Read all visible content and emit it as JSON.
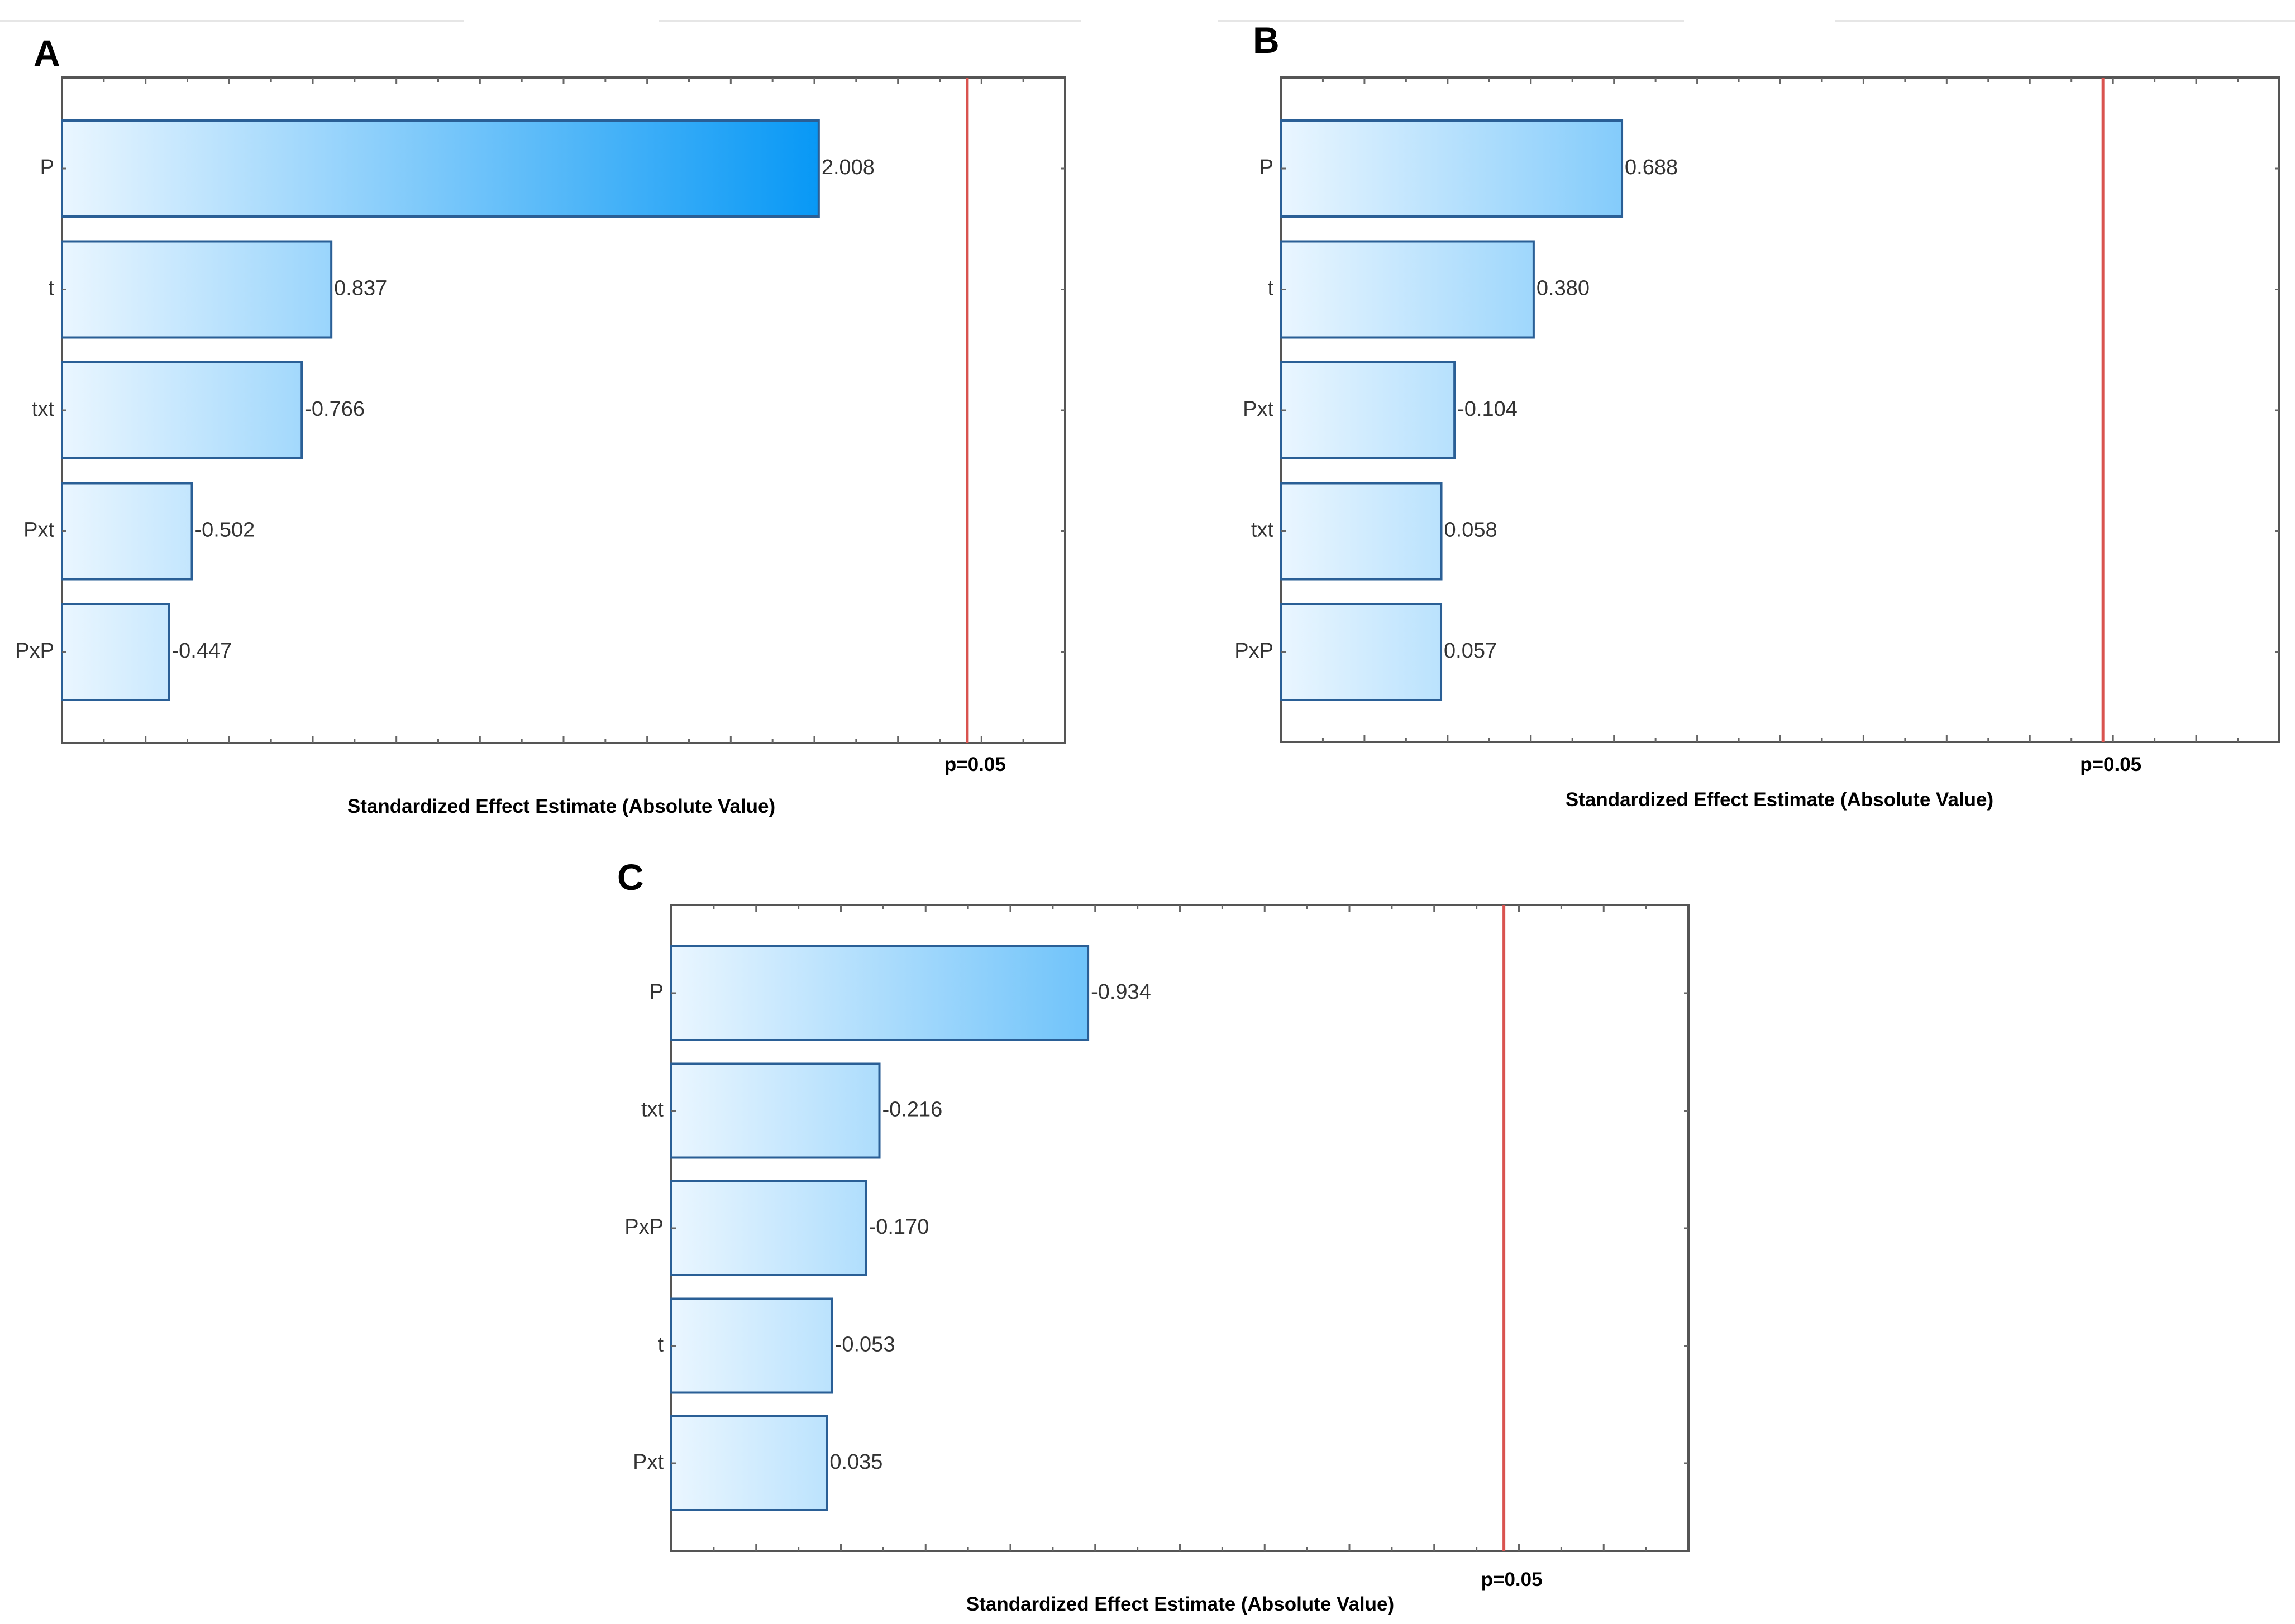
{
  "chart_data": [
    {
      "type": "bar",
      "orientation": "horizontal",
      "panel": "A",
      "categories": [
        "P",
        "t",
        "txt",
        "Pxt",
        "PxP"
      ],
      "values": [
        2.008,
        0.837,
        -0.766,
        -0.502,
        -0.447
      ],
      "value_labels": [
        "2.008",
        "0.837",
        "-0.766",
        "-0.502",
        "-0.447"
      ],
      "xlabel": "Standardized Effect Estimate (Absolute Value)",
      "reference_line": {
        "label": "p=0.05",
        "color": "#d9534f"
      },
      "xlim": [
        0.19,
        2.6
      ],
      "grid": false
    },
    {
      "type": "bar",
      "orientation": "horizontal",
      "panel": "B",
      "categories": [
        "P",
        "t",
        "Pxt",
        "txt",
        "PxP"
      ],
      "values": [
        0.688,
        0.38,
        -0.104,
        0.058,
        0.057
      ],
      "value_labels": [
        "0.688",
        "0.380",
        "-0.104",
        "0.058",
        "0.057"
      ],
      "xlabel": "Standardized Effect Estimate (Absolute Value)",
      "reference_line": {
        "label": "p=0.05",
        "color": "#d9534f"
      },
      "xlim": [
        -0.5,
        2.98
      ],
      "grid": false
    },
    {
      "type": "bar",
      "orientation": "horizontal",
      "panel": "C",
      "categories": [
        "P",
        "txt",
        "PxP",
        "t",
        "Pxt"
      ],
      "values": [
        -0.934,
        -0.216,
        -0.17,
        -0.053,
        0.035
      ],
      "value_labels": [
        "-0.934",
        "-0.216",
        "-0.170",
        "-0.053",
        "0.035"
      ],
      "xlabel": "Standardized Effect Estimate (Absolute Value)",
      "reference_line": {
        "label": "p=0.05",
        "color": "#d9534f"
      },
      "xlim": [
        -0.5,
        3.0
      ],
      "grid": false
    }
  ],
  "colors": {
    "bar_light": "#eaf6ff",
    "bar_dark": "#0095f5",
    "bar_border": "#2a5f96",
    "frame": "#555555"
  }
}
